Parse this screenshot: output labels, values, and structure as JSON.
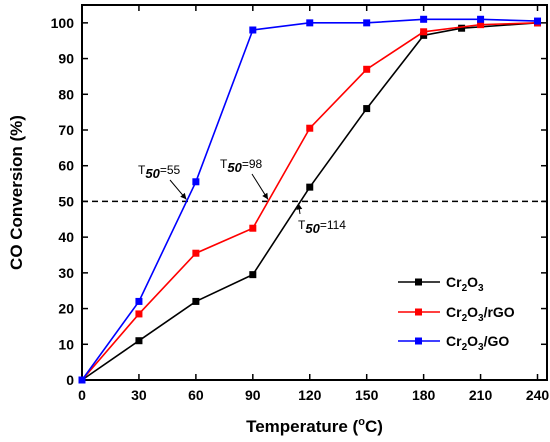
{
  "chart_data": {
    "type": "line",
    "xlabel": "Temperature (°C)",
    "ylabel": "CO Conversion (%)",
    "xlim": [
      0,
      245
    ],
    "ylim": [
      0,
      105
    ],
    "xticks": [
      0,
      30,
      60,
      90,
      120,
      150,
      180,
      210,
      240
    ],
    "yticks": [
      0,
      10,
      20,
      30,
      40,
      50,
      60,
      70,
      80,
      90,
      100
    ],
    "grid": false,
    "legend_position": "bottom-right",
    "reference_line": {
      "y": 50,
      "style": "dashed"
    },
    "series": [
      {
        "name": "Cr2O3",
        "color": "#000000",
        "marker": "square",
        "x": [
          0,
          30,
          60,
          90,
          120,
          150,
          180,
          200,
          240
        ],
        "y": [
          0,
          11,
          22,
          29.5,
          54,
          76,
          96.5,
          98.5,
          100
        ]
      },
      {
        "name": "Cr2O3/rGO",
        "color": "#ff0000",
        "marker": "square",
        "x": [
          0,
          30,
          60,
          90,
          120,
          150,
          180,
          210,
          240
        ],
        "y": [
          0,
          18.5,
          35.5,
          42.5,
          70.5,
          87,
          97.5,
          99.5,
          100
        ]
      },
      {
        "name": "Cr2O3/GO",
        "color": "#0000ff",
        "marker": "square",
        "x": [
          0,
          30,
          60,
          90,
          120,
          150,
          180,
          210,
          240
        ],
        "y": [
          0,
          22,
          55.5,
          98,
          100,
          100,
          101,
          101,
          100.5
        ]
      }
    ],
    "annotations": [
      {
        "label": "T50=55",
        "prefix": "T",
        "sub": "50",
        "suffix": "=55",
        "x": 55,
        "y": 50
      },
      {
        "label": "T50=98",
        "prefix": "T",
        "sub": "50",
        "suffix": "=98",
        "x": 98,
        "y": 50
      },
      {
        "label": "T50=114",
        "prefix": "T",
        "sub": "50",
        "suffix": "=114",
        "x": 114,
        "y": 50
      }
    ]
  }
}
